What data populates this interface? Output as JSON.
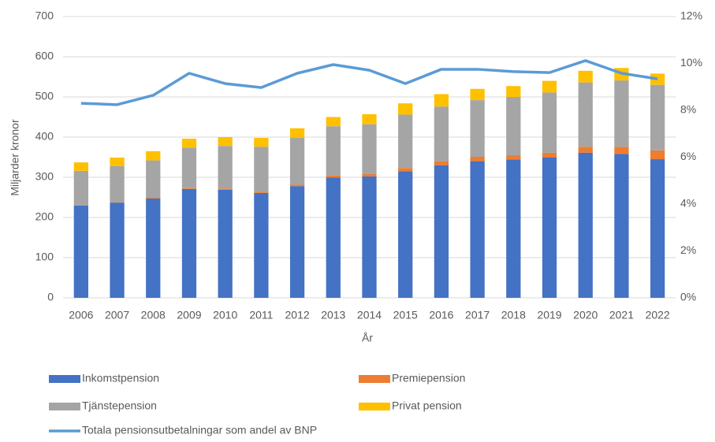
{
  "chart_data": {
    "type": "bar",
    "stacked": true,
    "categories": [
      "2006",
      "2007",
      "2008",
      "2009",
      "2010",
      "2011",
      "2012",
      "2013",
      "2014",
      "2015",
      "2016",
      "2017",
      "2018",
      "2019",
      "2020",
      "2021",
      "2022"
    ],
    "ylabel": "Miljarder kronor",
    "xlabel": "År",
    "ylim": [
      0,
      700
    ],
    "yticks": [
      0,
      100,
      200,
      300,
      400,
      500,
      600,
      700
    ],
    "y2lim": [
      0,
      12
    ],
    "y2ticks": [
      {
        "value": 0,
        "label": "0%"
      },
      {
        "value": 2,
        "label": "2%"
      },
      {
        "value": 4,
        "label": "4%"
      },
      {
        "value": 6,
        "label": "6%"
      },
      {
        "value": 8,
        "label": "8%"
      },
      {
        "value": 10,
        "label": "10%"
      },
      {
        "value": 12,
        "label": "12%"
      }
    ],
    "grid": true,
    "legend": "bottom",
    "series": [
      {
        "name": "Inkomstpension",
        "color": "#4472c4",
        "values": [
          230,
          237,
          247,
          271,
          269,
          261,
          278,
          299,
          302,
          315,
          330,
          340,
          344,
          349,
          361,
          358,
          345
        ]
      },
      {
        "name": "Premiepension",
        "color": "#ed7d31",
        "values": [
          1,
          1,
          2,
          2,
          3,
          3,
          4,
          5,
          6,
          8,
          10,
          11,
          11,
          12,
          15,
          18,
          22
        ]
      },
      {
        "name": "Tjänstepension",
        "color": "#a5a5a5",
        "values": [
          85,
          90,
          93,
          101,
          106,
          112,
          116,
          123,
          124,
          133,
          136,
          141,
          145,
          150,
          160,
          165,
          163
        ]
      },
      {
        "name": "Privat pension",
        "color": "#ffc000",
        "values": [
          21,
          21,
          23,
          22,
          22,
          22,
          24,
          23,
          25,
          28,
          31,
          28,
          27,
          29,
          29,
          31,
          28
        ]
      },
      {
        "name": "Totala pensionsutbetalningar som andel av BNP",
        "color": "#5b9bd5",
        "type": "line",
        "axis": "y2",
        "values": [
          8.3,
          8.24,
          8.64,
          9.58,
          9.14,
          8.97,
          9.58,
          9.95,
          9.71,
          9.14,
          9.75,
          9.75,
          9.65,
          9.61,
          10.12,
          9.58,
          9.34
        ]
      }
    ]
  }
}
